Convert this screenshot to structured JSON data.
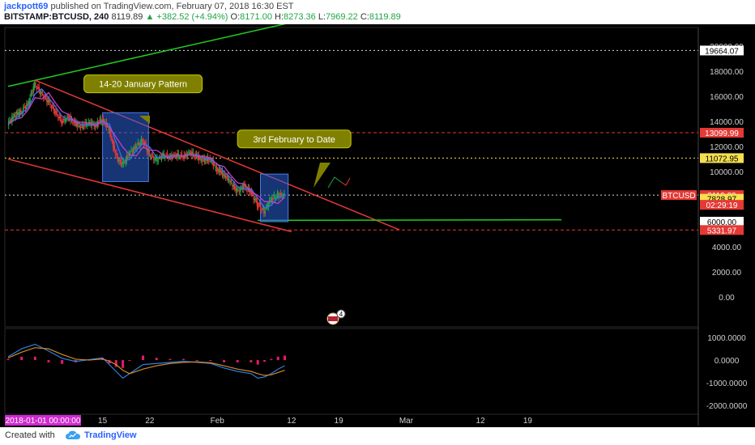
{
  "header": {
    "author": "jackpott69",
    "published": "published on TradingView.com, February 07, 2018 16:30 EST",
    "symbol": "BITSTAMP:BTCUSD, 240",
    "last": "8119.89",
    "change": "+382.52 (+4.94%)",
    "o_label": "O:",
    "o": "8171.00",
    "h_label": "H:",
    "h": "8273.36",
    "l_label": "L:",
    "l": "7969.22",
    "c_label": "C:",
    "c": "8119.89"
  },
  "footer": {
    "created_with": "Created with",
    "brand": "TradingView"
  },
  "colors": {
    "up": "#22a447",
    "down": "#e53935",
    "wedge": "#e53935",
    "green_line": "#22cc22",
    "pattern_box": "#2a5fd6",
    "callout": "#808000"
  },
  "chart_data": {
    "type": "candlestick",
    "symbol": "BITSTAMP:BTCUSD",
    "interval": "240",
    "price_axis": {
      "ylim": [
        -2400,
        21500
      ],
      "ticks": [
        20000,
        18000,
        16000,
        14000,
        12000,
        10000,
        6000,
        4000,
        2000,
        0
      ],
      "tick_labels": [
        "20000.00",
        "18000.00",
        "16000.00",
        "14000.00",
        "12000.00",
        "10000.00",
        "6000.00",
        "4000.00",
        "2000.00",
        "0.00"
      ]
    },
    "oscillator_axis": {
      "ylim": [
        -2400,
        1400
      ],
      "ticks": [
        1000,
        0,
        -1000,
        -2000
      ],
      "tick_labels": [
        "1000.0000",
        "0.0000",
        "-1000.0000",
        "-2000.0000"
      ]
    },
    "time_axis": {
      "tick_labels": [
        "15",
        "22",
        "Feb",
        "12",
        "19",
        "Mar",
        "12",
        "19"
      ],
      "tick_days": [
        14,
        21,
        31,
        42,
        49,
        59,
        70,
        77
      ],
      "cursor_label": "2018-01-01 00:00:00"
    },
    "level_labels": [
      {
        "value": 19664.07,
        "text": "19664.07",
        "style": "white-dotted"
      },
      {
        "value": 13099.99,
        "text": "13099.99",
        "style": "red-dashed"
      },
      {
        "value": 11072.95,
        "text": "11072.95",
        "style": "yellow-dotted"
      },
      {
        "value": 8119.89,
        "text": "8119.89",
        "style": "current",
        "tag": "BTCUSD"
      },
      {
        "value": 7828.97,
        "text": "7828.97",
        "style": "yellow"
      },
      {
        "value": 6000,
        "text": "6000.00",
        "style": "white"
      },
      {
        "value": 5331.97,
        "text": "5331.97",
        "style": "red-dashed"
      }
    ],
    "countdown": "02:29:19",
    "trendlines": [
      {
        "name": "green-upper",
        "from": [
          0,
          16800
        ],
        "to": [
          51,
          23000
        ]
      },
      {
        "name": "red-upper",
        "from": [
          4,
          17300
        ],
        "to": [
          58,
          5350
        ]
      },
      {
        "name": "red-lower",
        "from": [
          0,
          11000
        ],
        "to": [
          42,
          5200
        ]
      },
      {
        "name": "green-support",
        "from": [
          37,
          6100
        ],
        "to": [
          82,
          6150
        ]
      }
    ],
    "pattern_boxes": [
      {
        "x": [
          14.0,
          20.8
        ],
        "y": [
          9200,
          14700
        ]
      },
      {
        "x": [
          37.4,
          41.5
        ],
        "y": [
          6000,
          9800
        ]
      }
    ],
    "callouts": [
      {
        "text": "14-20 January Pattern",
        "at": [
          20,
          17000
        ]
      },
      {
        "text": "3rd February to Date",
        "at": [
          42.4,
          12600
        ]
      }
    ],
    "price_series": {
      "days": [
        0,
        1,
        2,
        3,
        4,
        5,
        6,
        7,
        8,
        9,
        10,
        11,
        12,
        13,
        14,
        15,
        16,
        17,
        18,
        19,
        20,
        21,
        22,
        23,
        24,
        25,
        26,
        27,
        28,
        29,
        30,
        31,
        32,
        33,
        34,
        35,
        36,
        37,
        38,
        39,
        40,
        41
      ],
      "close": [
        13800,
        14500,
        14800,
        15400,
        17000,
        16200,
        15600,
        14800,
        14000,
        14300,
        13800,
        13600,
        13900,
        13700,
        14200,
        13400,
        11300,
        10500,
        11400,
        12000,
        12500,
        11400,
        10900,
        11300,
        11200,
        11300,
        11200,
        11500,
        11200,
        10900,
        11000,
        10200,
        9800,
        9200,
        8400,
        8800,
        8400,
        7400,
        6800,
        7800,
        8100,
        8120
      ]
    },
    "oscillator_series": {
      "days": [
        0,
        2,
        4,
        6,
        8,
        10,
        12,
        14,
        15,
        16,
        17,
        18,
        20,
        22,
        24,
        26,
        28,
        30,
        32,
        34,
        36,
        37,
        38,
        39,
        40,
        41
      ],
      "macd": [
        150,
        500,
        700,
        400,
        80,
        -60,
        20,
        100,
        -200,
        -500,
        -800,
        -600,
        -200,
        -150,
        -100,
        -50,
        -100,
        -150,
        -350,
        -500,
        -600,
        -800,
        -750,
        -600,
        -400,
        -250
      ],
      "signal": [
        100,
        350,
        550,
        500,
        250,
        40,
        0,
        50,
        -50,
        -200,
        -450,
        -600,
        -400,
        -250,
        -150,
        -100,
        -80,
        -120,
        -250,
        -400,
        -500,
        -600,
        -680,
        -650,
        -550,
        -450
      ]
    }
  }
}
